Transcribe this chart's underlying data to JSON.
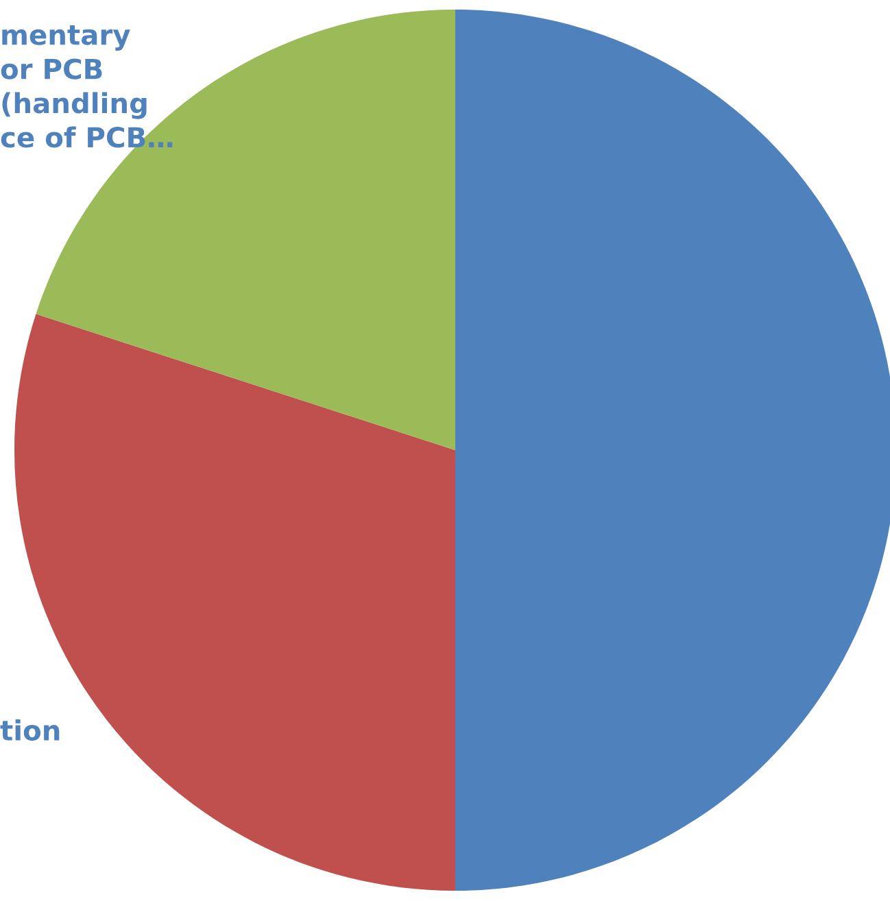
{
  "chart_data": {
    "type": "pie",
    "categories": [
      null,
      "tion",
      "mentary\nor PCB\n(handling\nce of PCB…"
    ],
    "values": [
      50,
      30,
      20
    ],
    "colors": [
      "#4f81bd",
      "#c0504d",
      "#9bbb59"
    ]
  }
}
